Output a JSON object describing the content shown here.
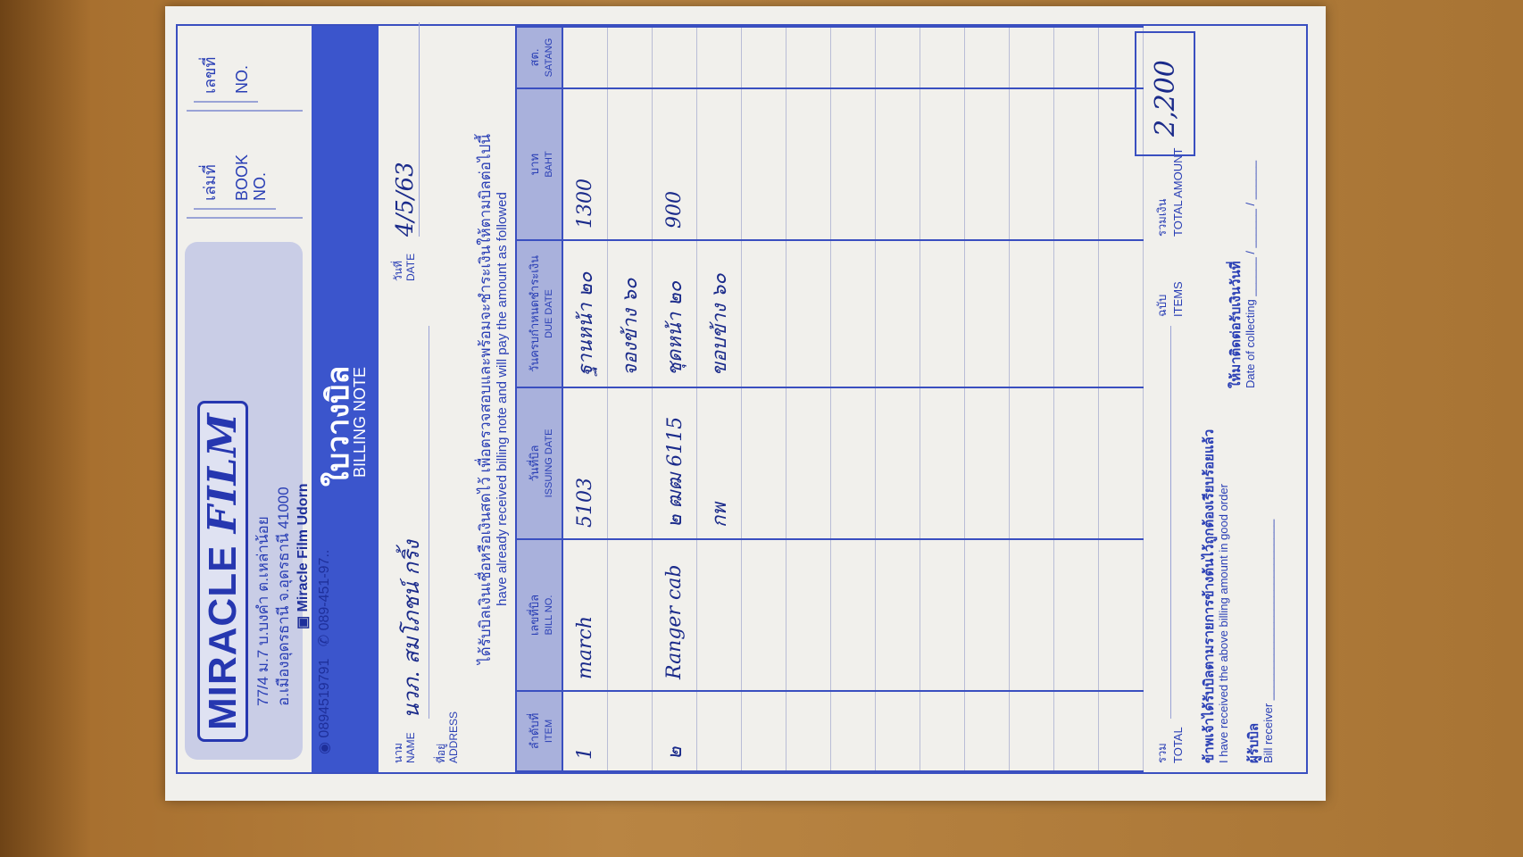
{
  "header": {
    "brand": "MIRACLE",
    "brand_script": "FILM",
    "address_line1": "77/4 ม.7 บ.บงคำ ต.เหล่าน้อย",
    "address_line2": "อ.เมืองอุดรธานี จ.อุดรธานี 41000",
    "facebook": "Miracle Film Udorn",
    "line_id": "0894519791",
    "phone": "089-451-97..",
    "book_no_th": "เล่มที่",
    "book_no_en": "BOOK NO.",
    "no_th": "เลขที่",
    "no_en": "NO.",
    "title_th": "ใบวางบิล",
    "title_en": "BILLING NOTE",
    "accent_color": "#3b55cc"
  },
  "form": {
    "name_th": "นาม",
    "name_en": "NAME",
    "name_value": "นวภ. สมโภชน์ กริ้ง",
    "address_th": "ที่อยู่",
    "address_en": "ADDRESS",
    "date_th": "วันที่",
    "date_en": "DATE",
    "date_value": "4/5/63",
    "statement_th": "ได้รับบิลเงินเชื่อหรือเงินสดไว้ เพื่อตรวจสอบและพร้อมจะชำระเงินให้ตามบิลต่อไปนี้",
    "statement_en": "have already received billing note and will pay the amount as followed"
  },
  "table": {
    "columns": [
      {
        "th": "ลำดับที่",
        "en": "ITEM"
      },
      {
        "th": "เลขที่บิล",
        "en": "BILL NO."
      },
      {
        "th": "วันที่บิล",
        "en": "ISSUING DATE"
      },
      {
        "th": "วันครบกำหนดชำระเงิน",
        "en": "DUE DATE"
      },
      {
        "th": "บาท",
        "en": "BAHT"
      },
      {
        "th": "สต.",
        "en": "SATANG"
      }
    ],
    "rows": [
      [
        "1",
        "march",
        "5103",
        "ฐานหน้า ๒๐",
        "1300",
        ""
      ],
      [
        "",
        "",
        "",
        "จองข้าง ๖๐",
        "",
        ""
      ],
      [
        "๒",
        "Ranger cab",
        "๒ ฒฒ 6115",
        "ชุดหน้า ๒๐",
        "900",
        ""
      ],
      [
        "",
        "",
        "กพ",
        "ขอบข้าง ๖๐",
        "",
        ""
      ],
      [
        "",
        "",
        "",
        "",
        "",
        ""
      ],
      [
        "",
        "",
        "",
        "",
        "",
        ""
      ],
      [
        "",
        "",
        "",
        "",
        "",
        ""
      ],
      [
        "",
        "",
        "",
        "",
        "",
        ""
      ],
      [
        "",
        "",
        "",
        "",
        "",
        ""
      ],
      [
        "",
        "",
        "",
        "",
        "",
        ""
      ],
      [
        "",
        "",
        "",
        "",
        "",
        ""
      ],
      [
        "",
        "",
        "",
        "",
        "",
        ""
      ],
      [
        "",
        "",
        "",
        "",
        "",
        ""
      ]
    ]
  },
  "totals": {
    "total_th": "รวม",
    "total_en": "TOTAL",
    "items_th": "ฉบับ",
    "items_en": "ITEMS",
    "amount_th": "รวมเงิน",
    "amount_en": "TOTAL AMOUNT",
    "amount_value": "2,200"
  },
  "footer": {
    "receipt_th": "ข้าพเจ้าได้รับบิลตามรายการข้างต้นไว้ถูกต้องเรียบร้อยแล้ว",
    "receipt_en": "I have received the above billing amount in good order",
    "receiver_th": "ผู้รับบิล",
    "receiver_en": "Bill receiver",
    "collect_th": "ให้มาติดต่อรับเงินวันที่",
    "collect_en": "Date of collecting"
  }
}
